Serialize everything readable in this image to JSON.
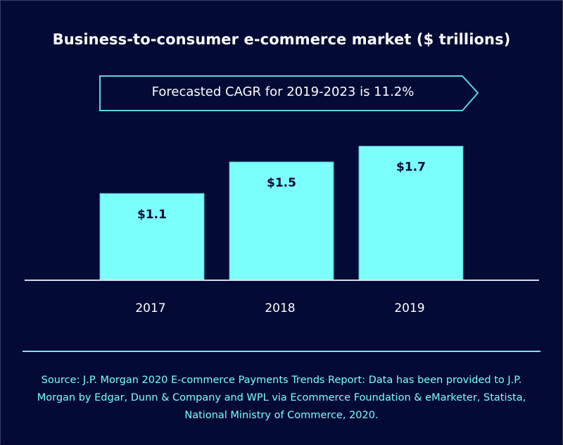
{
  "colors": {
    "background": "#020A35",
    "bar": "#7BFFFB",
    "bar_border": "#4fb8c4",
    "callout_border": "#5ed3e0",
    "text_light": "#ffffff",
    "source_text": "#7BFFFB"
  },
  "callout": {
    "text": "Forecasted CAGR for 2019-2023 is 11.2%",
    "icon": "arrow-right-callout"
  },
  "source": {
    "text": "Source: J.P. Morgan 2020 E-commerce Payments Trends Report: Data has been provided to J.P. Morgan by Edgar, Dunn & Company and WPL via Ecommerce Foundation & eMarketer, Statista, National Ministry of Commerce, 2020."
  },
  "chart_data": {
    "type": "bar",
    "title": "Business-to-consumer e-commerce market ($ trillions)",
    "categories": [
      "2017",
      "2018",
      "2019"
    ],
    "values": [
      1.1,
      1.5,
      1.7
    ],
    "data_labels": [
      "$1.1",
      "$1.5",
      "$1.7"
    ],
    "xlabel": "",
    "ylabel": "",
    "ylim": [
      0,
      1.75
    ],
    "grid": false,
    "legend": "none",
    "annotations": [
      "Forecasted CAGR for 2019-2023 is 11.2%"
    ]
  }
}
